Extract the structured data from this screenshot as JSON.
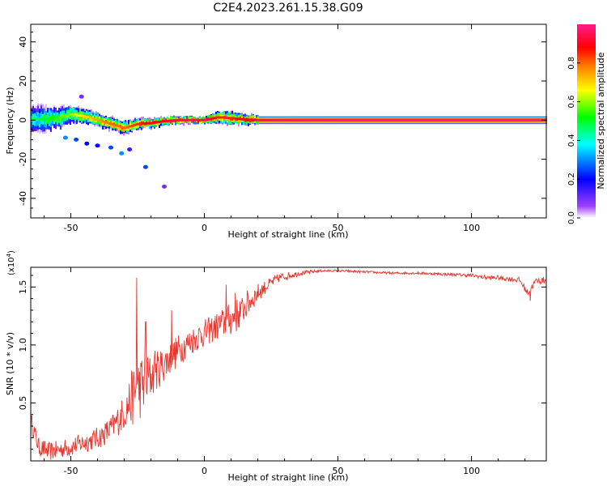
{
  "title": "C2E4.2023.261.15.38.G09",
  "chart_data": [
    {
      "type": "heatmap",
      "xlabel": "Height of straight line (km)",
      "ylabel": "Frequency (Hz)",
      "xlim": [
        -65,
        128
      ],
      "ylim": [
        -50,
        49
      ],
      "xticks": [
        -50,
        0,
        50,
        100
      ],
      "yticks": [
        -40,
        -20,
        0,
        20,
        40
      ],
      "colorbar": {
        "label": "Normalized spectral amplitude",
        "range": [
          0,
          1
        ],
        "ticks": [
          "0.0",
          "0.2",
          "0.4",
          "0.6",
          "0.8"
        ],
        "colors": [
          "#ffffff",
          "#8000ff",
          "#0000ff",
          "#00ffff",
          "#00ff00",
          "#ffff00",
          "#ff8000",
          "#ff0000",
          "#ff00ff"
        ]
      },
      "ridge": {
        "x": [
          -65,
          -60,
          -55,
          -50,
          -45,
          -40,
          -35,
          -30,
          -25,
          -20,
          -15,
          -10,
          -5,
          0,
          5,
          10,
          15,
          20,
          30,
          50,
          80,
          100,
          128
        ],
        "center": [
          0.5,
          0.5,
          1.0,
          3.0,
          2.0,
          0.0,
          -2.0,
          -4.0,
          -2.0,
          -1.5,
          -0.5,
          0.0,
          0.0,
          0.0,
          1.5,
          1.0,
          0.3,
          0.0,
          0.0,
          0.0,
          0.0,
          0.0,
          0.0
        ],
        "halfwidth": [
          6,
          6,
          5,
          4,
          3.5,
          3,
          3,
          3,
          2.5,
          2.2,
          2,
          1.8,
          1.6,
          1.5,
          3,
          3,
          2.5,
          2,
          2,
          2,
          2,
          2,
          2
        ],
        "amplitude": [
          0.45,
          0.5,
          0.55,
          0.6,
          0.7,
          0.75,
          0.8,
          0.8,
          0.85,
          0.9,
          0.9,
          0.95,
          0.95,
          0.95,
          0.85,
          0.85,
          0.9,
          0.95,
          0.98,
          1.0,
          1.0,
          1.0,
          1.0
        ]
      },
      "scatter_blobs": [
        {
          "x": -52,
          "y": -9,
          "amp": 0.3
        },
        {
          "x": -48,
          "y": -10,
          "amp": 0.25
        },
        {
          "x": -44,
          "y": -12,
          "amp": 0.2
        },
        {
          "x": -40,
          "y": -13,
          "amp": 0.2
        },
        {
          "x": -35,
          "y": -14,
          "amp": 0.25
        },
        {
          "x": -31,
          "y": -17,
          "amp": 0.3
        },
        {
          "x": -22,
          "y": -24,
          "amp": 0.25
        },
        {
          "x": -15,
          "y": -34,
          "amp": 0.1
        },
        {
          "x": -46,
          "y": 12,
          "amp": 0.1
        },
        {
          "x": -28,
          "y": -15,
          "amp": 0.15
        }
      ]
    },
    {
      "type": "line",
      "xlabel": "Height of straight line (km)",
      "ylabel": "SNR (10 * v/v)",
      "multiplier": "(x10",
      "multiplier_exp": "4",
      "multiplier_close": ")",
      "xlim": [
        -65,
        128
      ],
      "ylim": [
        0.0,
        1.67
      ],
      "xticks": [
        -50,
        0,
        50,
        100
      ],
      "yticks": [
        0.5,
        1.0,
        1.5
      ],
      "series": [
        {
          "color": "#e8362f",
          "x": [
            -65,
            -62,
            -58,
            -54,
            -50,
            -46,
            -42,
            -38,
            -34,
            -30,
            -27,
            -25,
            -22,
            -19,
            -16,
            -13,
            -10,
            -7,
            -4,
            0,
            4,
            8,
            12,
            16,
            20,
            24,
            28,
            32,
            36,
            40,
            44,
            50,
            60,
            70,
            80,
            90,
            100,
            106,
            110,
            114,
            118,
            121,
            124,
            128
          ],
          "y": [
            0.35,
            0.12,
            0.08,
            0.1,
            0.12,
            0.15,
            0.18,
            0.22,
            0.3,
            0.42,
            0.55,
            0.62,
            0.68,
            0.75,
            0.82,
            0.88,
            0.95,
            1.0,
            1.05,
            1.1,
            1.15,
            1.2,
            1.25,
            1.35,
            1.45,
            1.52,
            1.58,
            1.6,
            1.62,
            1.63,
            1.64,
            1.64,
            1.63,
            1.62,
            1.62,
            1.61,
            1.6,
            1.58,
            1.58,
            1.57,
            1.56,
            1.45,
            1.55,
            1.56
          ],
          "noise": [
            0.08,
            0.08,
            0.08,
            0.08,
            0.08,
            0.09,
            0.09,
            0.1,
            0.12,
            0.15,
            0.25,
            0.3,
            0.25,
            0.18,
            0.16,
            0.15,
            0.14,
            0.12,
            0.12,
            0.12,
            0.12,
            0.14,
            0.15,
            0.12,
            0.08,
            0.05,
            0.04,
            0.03,
            0.02,
            0.015,
            0.01,
            0.01,
            0.01,
            0.01,
            0.01,
            0.012,
            0.015,
            0.02,
            0.02,
            0.02,
            0.025,
            0.03,
            0.03,
            0.03
          ],
          "spikes": [
            {
              "x": -25.3,
              "y": 1.58
            },
            {
              "x": -22.0,
              "y": 1.2
            },
            {
              "x": -18.5,
              "y": 0.95
            },
            {
              "x": -12.3,
              "y": 1.3
            },
            {
              "x": 8.2,
              "y": 1.52
            },
            {
              "x": 11.5,
              "y": 1.45
            },
            {
              "x": 14.0,
              "y": 1.36
            },
            {
              "x": 122.0,
              "y": 1.38
            }
          ]
        }
      ]
    }
  ]
}
